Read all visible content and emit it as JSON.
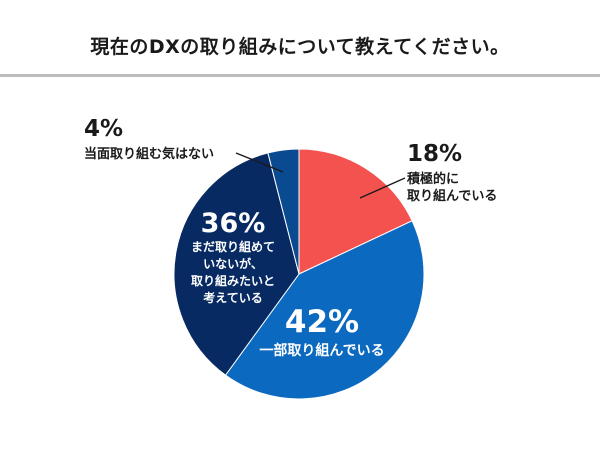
{
  "title": "現在のDXの取り組みについて教えてください。",
  "colors": {
    "slice_positive": "#f4524f",
    "slice_partial": "#0b69c0",
    "slice_planning": "#082a63",
    "slice_none": "#0a4a91",
    "divider": "#bdbdbd"
  },
  "chart_data": {
    "type": "pie",
    "title": "現在のDXの取り組みについて教えてください。",
    "slices": [
      {
        "value": 18,
        "percent_label": "18%",
        "label_lines": [
          "積極的に",
          "取り組んでいる"
        ],
        "color": "#f4524f"
      },
      {
        "value": 42,
        "percent_label": "42%",
        "label_lines": [
          "一部取り組んでいる"
        ],
        "color": "#0b69c0"
      },
      {
        "value": 36,
        "percent_label": "36%",
        "label_lines": [
          "まだ取り組めて",
          "いないが、",
          "取り組みたいと",
          "考えている"
        ],
        "color": "#082a63"
      },
      {
        "value": 4,
        "percent_label": "4%",
        "label_lines": [
          "当面取り組む気はない"
        ],
        "color": "#0a4a91"
      }
    ]
  }
}
